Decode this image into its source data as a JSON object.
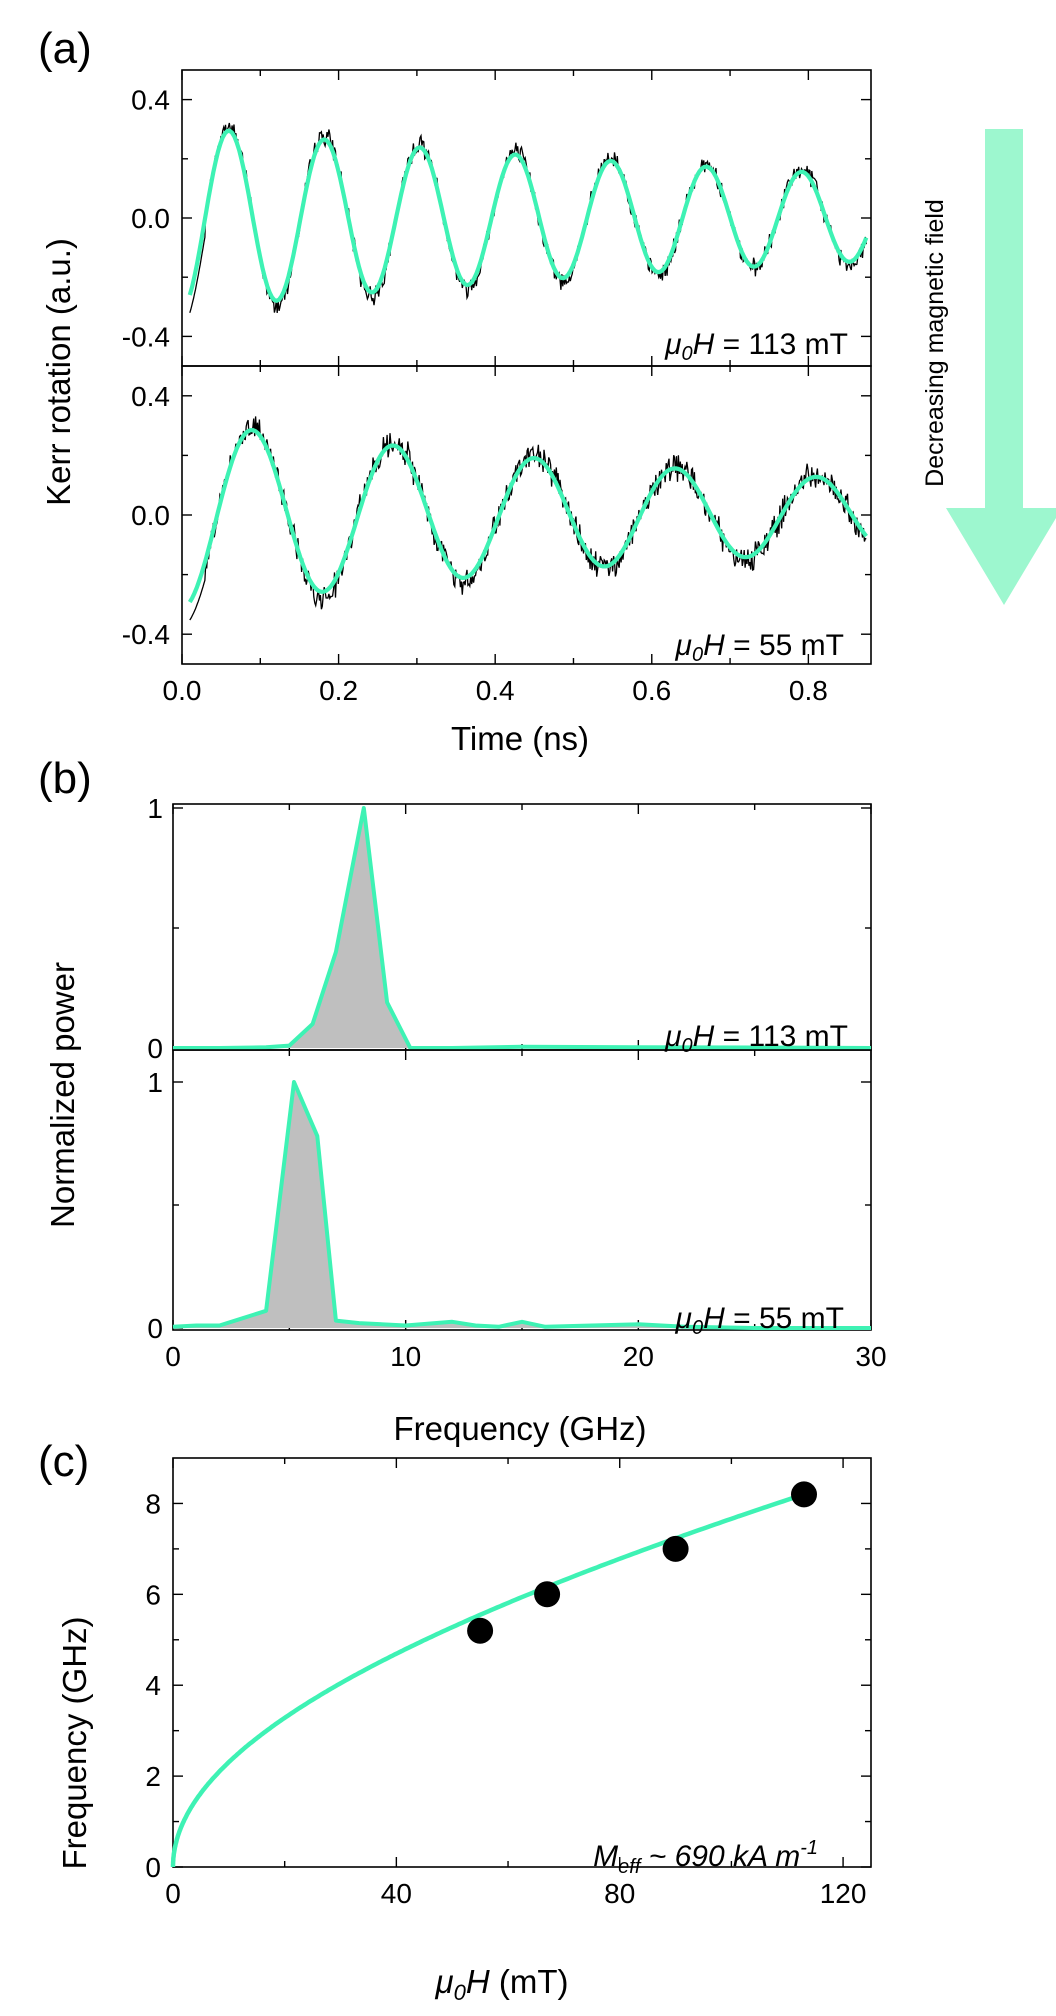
{
  "colors": {
    "fit": "#3EF2B4",
    "arrow": "#9DF7CF",
    "data": "#000000",
    "fill": "#BFBFBF"
  },
  "arrow_label": "Decreasing magnetic field",
  "chart_data": [
    {
      "id": "a",
      "panel_label": "(a)",
      "type": "line",
      "xlabel": "Time (ns)",
      "ylabel": "Kerr rotation (a.u.)",
      "xlim": [
        0.0,
        0.88
      ],
      "xticks": [
        0.0,
        0.2,
        0.4,
        0.6,
        0.8
      ],
      "xtick_labels": [
        "0.0",
        "0.2",
        "0.4",
        "0.6",
        "0.8"
      ],
      "subplots": [
        {
          "annotation_prefix": "μ",
          "annotation_sub": "0",
          "annotation_var": "H",
          "annotation_rest": " = 113 mT",
          "ylim": [
            -0.5,
            0.5
          ],
          "yticks": [
            -0.4,
            0.0,
            0.4
          ],
          "ytick_labels": [
            "-0.4",
            "0.0",
            "0.4"
          ],
          "fit": {
            "amplitude": 0.295,
            "frequency_ghz": 8.2,
            "damping_ns": 1.15,
            "peak_time_ns": 0.06
          },
          "series": [
            {
              "name": "",
              "kind": "data",
              "x": [
                0.01,
                0.04,
                0.06,
                0.12,
                0.185,
                0.25,
                0.31,
                0.37,
                0.43,
                0.495,
                0.555,
                0.62,
                0.68,
                0.745,
                0.805,
                0.875
              ],
              "y": [
                -0.33,
                0.18,
                0.26,
                -0.29,
                0.2,
                -0.19,
                0.16,
                -0.14,
                0.13,
                -0.12,
                0.11,
                -0.1,
                0.09,
                -0.08,
                0.07,
                -0.05
              ]
            }
          ]
        },
        {
          "annotation_prefix": "μ",
          "annotation_sub": "0",
          "annotation_var": "H",
          "annotation_rest": " = 55 mT",
          "ylim": [
            -0.5,
            0.5
          ],
          "yticks": [
            -0.4,
            0.0,
            0.4
          ],
          "ytick_labels": [
            "-0.4",
            "0.0",
            "0.4"
          ],
          "fit": {
            "amplitude": 0.285,
            "frequency_ghz": 5.55,
            "damping_ns": 0.9,
            "peak_time_ns": 0.09
          },
          "series": [
            {
              "name": "",
              "kind": "data",
              "x": [
                0.01,
                0.04,
                0.09,
                0.18,
                0.27,
                0.36,
                0.45,
                0.54,
                0.63,
                0.72,
                0.81,
                0.875
              ],
              "y": [
                -0.33,
                0.05,
                0.3,
                -0.2,
                0.19,
                -0.14,
                0.12,
                -0.1,
                0.08,
                -0.07,
                0.06,
                0.0
              ]
            }
          ]
        }
      ]
    },
    {
      "id": "b",
      "panel_label": "(b)",
      "type": "area",
      "xlabel": "Frequency (GHz)",
      "ylabel": "Normalized power",
      "xlim": [
        0,
        30
      ],
      "xticks": [
        0,
        10,
        20,
        30
      ],
      "xtick_labels": [
        "0",
        "10",
        "20",
        "30"
      ],
      "subplots": [
        {
          "annotation_prefix": "μ",
          "annotation_sub": "0",
          "annotation_var": "H",
          "annotation_rest": " = 113 mT",
          "ylim": [
            0,
            1.1
          ],
          "yticks": [
            0,
            1
          ],
          "ytick_labels": [
            "0",
            "1"
          ],
          "series": [
            {
              "name": "",
              "x": [
                0,
                2,
                4,
                5,
                6,
                7,
                8.2,
                9.2,
                10.2,
                12,
                15,
                20,
                25,
                30
              ],
              "y": [
                0,
                0,
                0.003,
                0.01,
                0.1,
                0.4,
                1.0,
                0.19,
                0.0,
                0.0,
                0.005,
                0.003,
                0.002,
                0.0
              ]
            }
          ]
        },
        {
          "annotation_prefix": "μ",
          "annotation_sub": "0",
          "annotation_var": "H",
          "annotation_rest": " = 55 mT",
          "ylim": [
            0,
            1.1
          ],
          "yticks": [
            0,
            1
          ],
          "ytick_labels": [
            "0",
            "1"
          ],
          "series": [
            {
              "name": "",
              "x": [
                0,
                1,
                2,
                3,
                4,
                5.2,
                6.2,
                7.0,
                8,
                10,
                12,
                13,
                14,
                15,
                16,
                18,
                20,
                22,
                25,
                30
              ],
              "y": [
                0.005,
                0.01,
                0.01,
                0.04,
                0.07,
                1.0,
                0.78,
                0.03,
                0.02,
                0.01,
                0.025,
                0.01,
                0.005,
                0.025,
                0.005,
                0.01,
                0.015,
                0.005,
                0.0,
                0.0
              ]
            }
          ]
        }
      ]
    },
    {
      "id": "c",
      "panel_label": "(c)",
      "type": "scatter",
      "xlabel_var": "μ",
      "xlabel_sub": "0",
      "xlabel_var2": "H",
      "xlabel_rest": " (mT)",
      "ylabel": "Frequency (GHz)",
      "xlim": [
        0,
        125
      ],
      "ylim": [
        0,
        9
      ],
      "xticks": [
        0,
        40,
        80,
        120
      ],
      "xtick_labels": [
        "0",
        "40",
        "80",
        "120"
      ],
      "yticks": [
        0,
        2,
        4,
        6,
        8
      ],
      "ytick_labels": [
        "0",
        "2",
        "4",
        "6",
        "8"
      ],
      "annotation_main": "M",
      "annotation_sub": "eff",
      "annotation_mid": " ~ 690 kA m",
      "annotation_sup": "-1",
      "fit": {
        "meff_ka_per_m": 690,
        "x_range": [
          0,
          113
        ]
      },
      "series": [
        {
          "name": "",
          "kind": "points",
          "x": [
            55,
            67,
            90,
            113
          ],
          "y": [
            5.2,
            6.0,
            7.0,
            8.2
          ]
        }
      ]
    }
  ]
}
